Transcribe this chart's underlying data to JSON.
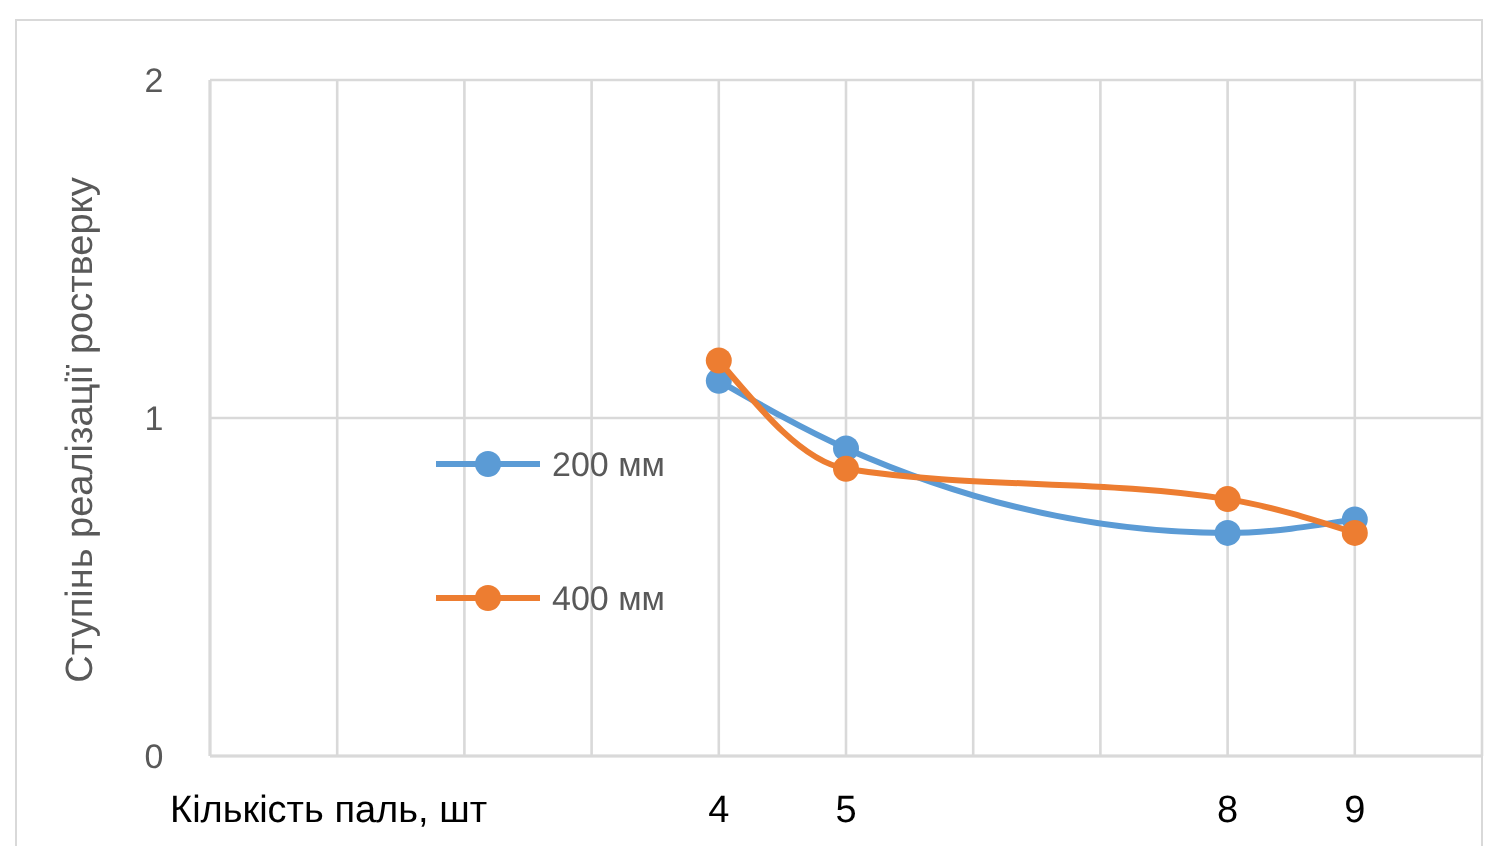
{
  "chart_data": {
    "type": "line",
    "xlabel": "Кількість паль, шт",
    "ylabel": "Ступінь реалізації ростверку",
    "x": [
      4,
      5,
      8,
      9
    ],
    "series": [
      {
        "name": "200 мм",
        "color": "#5b9bd5",
        "values": [
          1.11,
          0.91,
          0.66,
          0.7
        ]
      },
      {
        "name": "400 мм",
        "color": "#ed7d31",
        "values": [
          1.17,
          0.85,
          0.76,
          0.66
        ]
      }
    ],
    "xlim": [
      0,
      10
    ],
    "xticks": [
      {
        "value": 0,
        "label": null
      },
      {
        "value": 1,
        "label": null
      },
      {
        "value": 2,
        "label": null
      },
      {
        "value": 3,
        "label": null
      },
      4,
      5,
      {
        "value": 6,
        "label": null
      },
      {
        "value": 7,
        "label": null
      },
      8,
      9,
      {
        "value": 10,
        "label": null
      }
    ],
    "ylim": [
      0,
      2
    ],
    "yticks": [
      0,
      1,
      2
    ],
    "grid": true,
    "legend": "left",
    "marker": "circle",
    "line_style": "solid"
  }
}
